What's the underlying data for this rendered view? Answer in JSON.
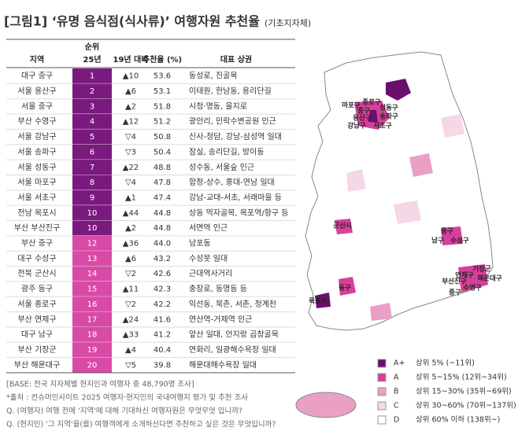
{
  "title": "[그림1] ‘유명 음식점(식사류)’ 여행자원 추천율",
  "subtitle": "(기초지자체)",
  "table": {
    "header_region": "지역",
    "header_rank": "순위",
    "header_rank25": "25년",
    "header_change": "19년 대비",
    "header_rate": "추천율 (%)",
    "header_area": "대표 상권",
    "rows": [
      [
        "대구 중구",
        "1",
        "▲10",
        "53.6",
        "동성로, 진골목"
      ],
      [
        "서울 용산구",
        "2",
        "▲6",
        "53.1",
        "이태원, 한남동, 용리단길"
      ],
      [
        "서울 중구",
        "3",
        "▲2",
        "51.8",
        "시청·명동, 을지로"
      ],
      [
        "부산 수영구",
        "4",
        "▲12",
        "51.2",
        "광안리, 민락수변공원 인근"
      ],
      [
        "서울 강남구",
        "5",
        "▽4",
        "50.8",
        "신사-청담, 강남-삼성역 일대"
      ],
      [
        "서울 송파구",
        "6",
        "▽3",
        "50.4",
        "잠실, 송리단길, 방이동"
      ],
      [
        "서울 성동구",
        "7",
        "▲22",
        "48.8",
        "성수동, 서울숲 인근"
      ],
      [
        "서울 마포구",
        "8",
        "▽4",
        "47.8",
        "합정-상수, 홍대-연남 일대"
      ],
      [
        "서울 서초구",
        "9",
        "▲1",
        "47.4",
        "강남-교대-서초, 서래마을 등"
      ],
      [
        "전남 목포시",
        "10",
        "▲44",
        "44.8",
        "상동 먹자골목, 목포역/항구 등"
      ],
      [
        "부산 부산진구",
        "10",
        "▲2",
        "44.8",
        "서면역 인근"
      ],
      [
        "부산 중구",
        "12",
        "▲36",
        "44.0",
        "남포동"
      ],
      [
        "대구 수성구",
        "13",
        "▲6",
        "43.2",
        "수성못 일대"
      ],
      [
        "전북 군산시",
        "14",
        "▽2",
        "42.6",
        "근대역사거리"
      ],
      [
        "광주 동구",
        "15",
        "▲11",
        "42.3",
        "충장로, 동명동 등"
      ],
      [
        "서울 종로구",
        "16",
        "▽2",
        "42.2",
        "익선동, 북촌, 서촌, 청계천"
      ],
      [
        "부산 연제구",
        "17",
        "▲24",
        "41.6",
        "연산역-거제역 인근"
      ],
      [
        "대구 남구",
        "18",
        "▲33",
        "41.2",
        "앞산 일대, 안지랑 곱창골목"
      ],
      [
        "부산 기장군",
        "19",
        "▲4",
        "40.4",
        "연화리, 일광해수욕장 일대"
      ],
      [
        "부산 해운대구",
        "20",
        "▽5",
        "39.8",
        "해운대해수욕장 일대"
      ]
    ]
  },
  "footnotes": [
    "[BASE: 전국 지자체별 현지인과 여행자 중 48,790명 조사]",
    "*출처 : 컨슈머인사이트 2025 여행자·현지인의 국내여행지 평가 및 추천 조사",
    "Q. (여행자) 여행 전에 '지역'에 대해 기대하신 여행자원은 무엇무엇 입니까?",
    "Q. (현지인) '그 지역'을(를) 여행객에게 소개하신다면 추천하고 싶은 것은 무엇입니까?"
  ],
  "legend": [
    {
      "grade": "A+",
      "label": "상위 5% (~11위)"
    },
    {
      "grade": "A",
      "label": "상위 5~15% (12위~34위)"
    },
    {
      "grade": "B",
      "label": "상위 15~30% (35위~69위)"
    },
    {
      "grade": "C",
      "label": "상위 30~60% (70위~137위)"
    },
    {
      "grade": "D",
      "label": "상위 60% 이하 (138위~)"
    }
  ],
  "map_labels": [
    "마포구",
    "종로구",
    "중구",
    "성동구",
    "용산구",
    "송파구",
    "강남구",
    "서초구",
    "군산시",
    "중구",
    "남구",
    "수성구",
    "동구",
    "목포시",
    "기장군",
    "연제구",
    "해운대구",
    "부산진구",
    "수영구",
    "중구"
  ]
}
